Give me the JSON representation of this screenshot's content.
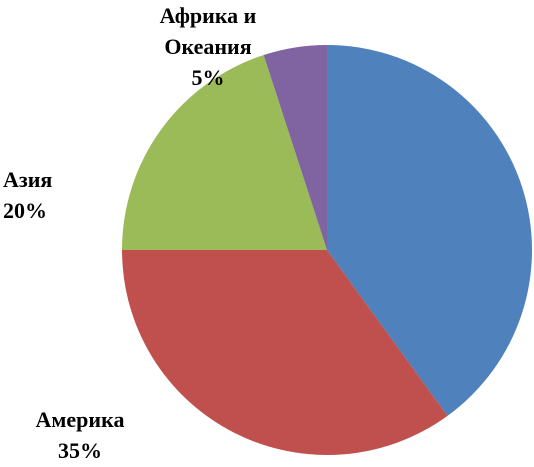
{
  "chart_data": {
    "type": "pie",
    "categories": [
      null,
      "Америка",
      "Азия",
      "Африка и Океания"
    ],
    "values": [
      40,
      35,
      20,
      5
    ],
    "value_labels": [
      null,
      "35%",
      "20%",
      "5%"
    ],
    "colors": [
      "#4f81bd",
      "#c0504d",
      "#9bbb59",
      "#8064a2"
    ]
  }
}
